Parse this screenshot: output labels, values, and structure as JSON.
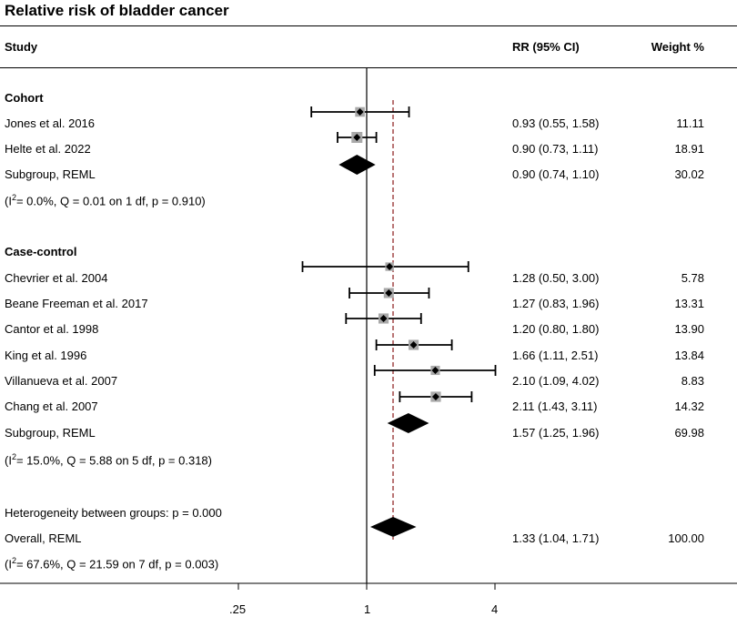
{
  "title": "Relative risk of bladder cancer",
  "headers": {
    "study": "Study",
    "rr": "RR (95% CI)",
    "weight": "Weight %"
  },
  "chart_data": {
    "type": "forest",
    "scale": "log",
    "null_value": 1,
    "overall_estimate": 1.33,
    "x_ticks": [
      {
        "value": 0.25,
        "label": ".25"
      },
      {
        "value": 1,
        "label": "1"
      },
      {
        "value": 4,
        "label": "4"
      }
    ],
    "groups": [
      {
        "name": "Cohort",
        "studies": [
          {
            "label": "Jones et al. 2016",
            "rr": 0.93,
            "lo": 0.55,
            "hi": 1.58,
            "ci_text": "0.93 (0.55, 1.58)",
            "weight": "11.11"
          },
          {
            "label": "Helte et al. 2022",
            "rr": 0.9,
            "lo": 0.73,
            "hi": 1.11,
            "ci_text": "0.90 (0.73, 1.11)",
            "weight": "18.91"
          }
        ],
        "subgroup": {
          "label": "Subgroup, REML",
          "rr": 0.9,
          "lo": 0.74,
          "hi": 1.1,
          "ci_text": "0.90 (0.74, 1.10)",
          "weight": "30.02"
        },
        "heterogeneity": {
          "i2_prefix": "(I",
          "i2_sup": "2",
          "i2_rest": "= 0.0%, Q = 0.01 on 1 df, p = 0.910)"
        }
      },
      {
        "name": "Case-control",
        "studies": [
          {
            "label": "Chevrier et al. 2004",
            "rr": 1.28,
            "lo": 0.5,
            "hi": 3.0,
            "ci_text": "1.28 (0.50, 3.00)",
            "weight": "5.78"
          },
          {
            "label": "Beane Freeman et al. 2017",
            "rr": 1.27,
            "lo": 0.83,
            "hi": 1.96,
            "ci_text": "1.27 (0.83, 1.96)",
            "weight": "13.31"
          },
          {
            "label": "Cantor et al. 1998",
            "rr": 1.2,
            "lo": 0.8,
            "hi": 1.8,
            "ci_text": "1.20 (0.80, 1.80)",
            "weight": "13.90"
          },
          {
            "label": "King et al. 1996",
            "rr": 1.66,
            "lo": 1.11,
            "hi": 2.51,
            "ci_text": "1.66 (1.11, 2.51)",
            "weight": "13.84"
          },
          {
            "label": "Villanueva et al. 2007",
            "rr": 2.1,
            "lo": 1.09,
            "hi": 4.02,
            "ci_text": "2.10 (1.09, 4.02)",
            "weight": "8.83"
          },
          {
            "label": "Chang et al. 2007",
            "rr": 2.11,
            "lo": 1.43,
            "hi": 3.11,
            "ci_text": "2.11 (1.43, 3.11)",
            "weight": "14.32"
          }
        ],
        "subgroup": {
          "label": "Subgroup, REML",
          "rr": 1.57,
          "lo": 1.25,
          "hi": 1.96,
          "ci_text": "1.57 (1.25, 1.96)",
          "weight": "69.98"
        },
        "heterogeneity": {
          "i2_prefix": "(I",
          "i2_sup": "2",
          "i2_rest": "= 15.0%, Q = 5.88 on 5 df, p = 0.318)"
        }
      }
    ],
    "between_groups": "Heterogeneity between groups: p = 0.000",
    "overall": {
      "label": "Overall, REML",
      "rr": 1.33,
      "lo": 1.04,
      "hi": 1.71,
      "ci_text": "1.33 (1.04, 1.71)",
      "weight": "100.00",
      "heterogeneity": {
        "i2_prefix": "(I",
        "i2_sup": "2",
        "i2_rest": "= 67.6%, Q = 21.59 on 7 df, p = 0.003)"
      }
    }
  }
}
